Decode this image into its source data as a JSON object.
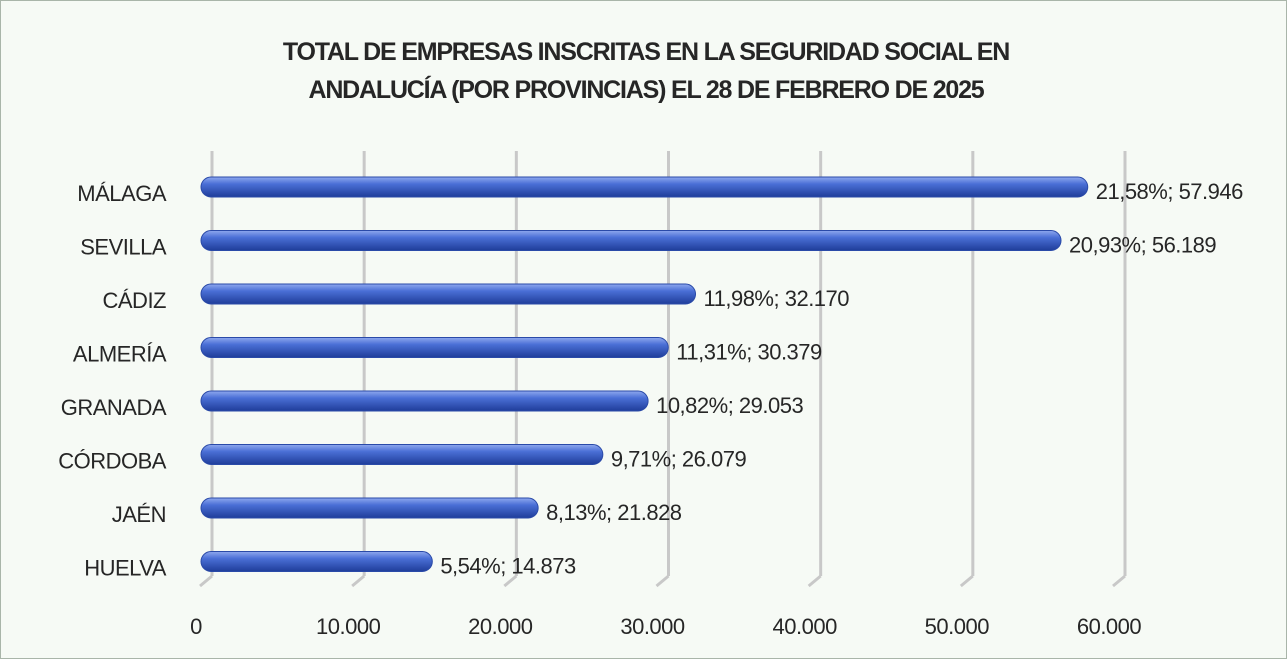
{
  "chart_data": {
    "type": "bar",
    "orientation": "horizontal",
    "title": "TOTAL DE EMPRESAS INSCRITAS EN LA SEGURIDAD SOCIAL EN\nANDALUCÍA (POR PROVINCIAS) EL 28 DE FEBRERO DE 2025",
    "categories": [
      "MÁLAGA",
      "SEVILLA",
      "CÁDIZ",
      "ALMERÍA",
      "GRANADA",
      "CÓRDOBA",
      "JAÉN",
      "HUELVA"
    ],
    "values": [
      57946,
      56189,
      32170,
      30379,
      29053,
      26079,
      21828,
      14873
    ],
    "value_labels": [
      "21,58%; 57.946",
      "20,93%; 56.189",
      "11,98%; 32.170",
      "11,31%; 30.379",
      "10,82%; 29.053",
      "9,71%; 26.079",
      "8,13%; 21.828",
      "5,54%; 14.873"
    ],
    "color": "#3f63c8",
    "xlim": [
      0,
      60000
    ],
    "xticks": [
      0,
      {
        "value": 10000,
        "label": "10.000"
      },
      {
        "value": 20000,
        "label": "20.000"
      },
      {
        "value": 30000,
        "label": "30.000"
      },
      {
        "value": 40000,
        "label": "40.000"
      },
      {
        "value": 50000,
        "label": "50.000"
      },
      {
        "value": 60000,
        "label": "60.000"
      }
    ],
    "grid": true
  }
}
